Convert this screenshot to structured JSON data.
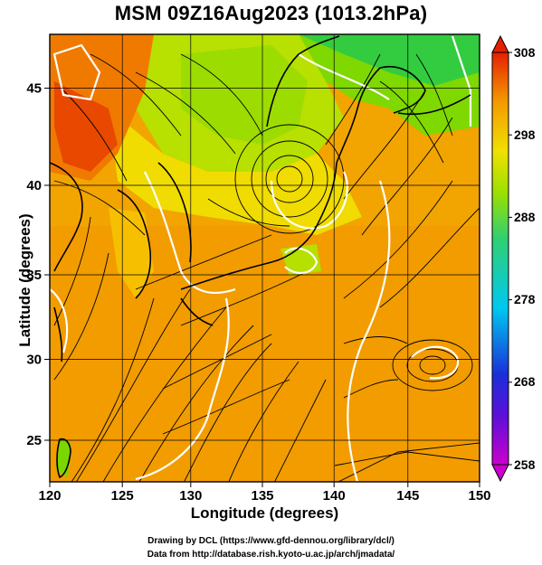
{
  "title": "MSM 09Z16Aug2023 (1013.2hPa)",
  "map": {
    "x_axis_label": "Longitude (degrees)",
    "y_axis_label": "Latitude  (degrees)",
    "lon_range": [
      120,
      150
    ],
    "lat_range": [
      22.4,
      47.6
    ],
    "lon_ticks": [
      120,
      125,
      130,
      135,
      140,
      145,
      150
    ],
    "lat_ticks": [
      25,
      30,
      35,
      40,
      45
    ],
    "grid": true,
    "features": [
      "temperature shading",
      "streamlines",
      "coastlines",
      "white contour lines",
      "cyclonic vortex near 136E 40N",
      "vortex near 146E 29.5N"
    ]
  },
  "colorbar": {
    "ticks": [
      308,
      298,
      288,
      278,
      268,
      258
    ],
    "min": 258,
    "max": 308,
    "position": "right",
    "colors": [
      "#cc00cc",
      "#2a20d0",
      "#00c0ff",
      "#2fd080",
      "#9be000",
      "#f0d800",
      "#f49a00",
      "#e52000"
    ]
  },
  "footer": {
    "line1": "Drawing by DCL (https://www.gfd-dennou.org/library/dcl/)",
    "line2": "Data from http://database.rish.kyoto-u.ac.jp/arch/jmadata/"
  }
}
